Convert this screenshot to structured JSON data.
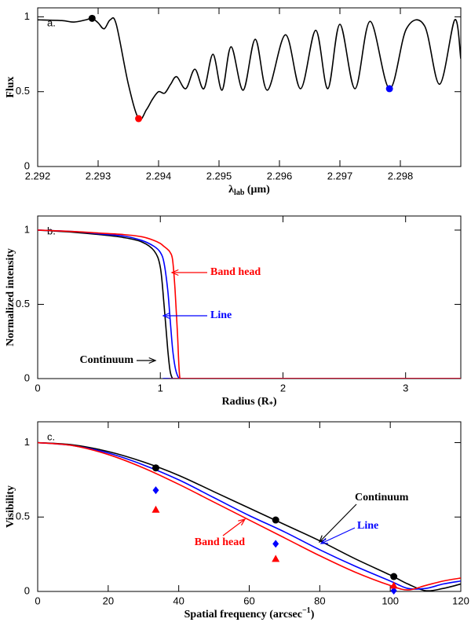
{
  "chart_data": [
    {
      "type": "line",
      "label": "a.",
      "ylabel": "Flux",
      "xlabel": {
        "symbol": "λ",
        "sub": "lab",
        "after": " (μm)"
      },
      "xlim": [
        2.292,
        2.299
      ],
      "xticks": [
        2.292,
        2.293,
        2.294,
        2.295,
        2.296,
        2.297,
        2.298
      ],
      "ylim": [
        0,
        1.06
      ],
      "yticks": [
        0,
        0.5,
        1
      ],
      "x": [
        2.292,
        2.2924,
        2.2926,
        2.2928,
        2.2929,
        2.293,
        2.2931,
        2.2932,
        2.2933,
        2.2935,
        2.29367,
        2.2938,
        2.2939,
        2.294,
        2.2941,
        2.2942,
        2.2943,
        2.29445,
        2.2946,
        2.29475,
        2.2949,
        2.29505,
        2.2952,
        2.2954,
        2.2956,
        2.2958,
        2.2961,
        2.29635,
        2.2966,
        2.2968,
        2.297,
        2.29725,
        2.2975,
        2.29782,
        2.2981,
        2.2984,
        2.29865,
        2.2989,
        2.299
      ],
      "series": [
        {
          "color": "#000000",
          "values": [
            0.98,
            0.975,
            0.965,
            0.98,
            0.99,
            0.96,
            0.92,
            0.98,
            0.95,
            0.55,
            0.32,
            0.38,
            0.45,
            0.5,
            0.49,
            0.55,
            0.6,
            0.52,
            0.65,
            0.52,
            0.75,
            0.51,
            0.8,
            0.51,
            0.85,
            0.51,
            0.88,
            0.52,
            0.91,
            0.52,
            0.95,
            0.52,
            0.97,
            0.52,
            0.92,
            0.94,
            0.55,
            0.98,
            0.72
          ]
        }
      ],
      "points": [
        {
          "shape": "circle",
          "x": [
            2.2929
          ],
          "values": [
            0.99
          ],
          "color": "#000000"
        },
        {
          "shape": "circle",
          "x": [
            2.29367
          ],
          "values": [
            0.32
          ],
          "color": "#ff0000"
        },
        {
          "shape": "circle",
          "x": [
            2.29782
          ],
          "values": [
            0.52
          ],
          "color": "#0000ff"
        }
      ]
    },
    {
      "type": "line",
      "label": "b.",
      "ylabel": "Normalized intensity",
      "xlabel": {
        "symbol": "Radius (R",
        "sub": "*",
        "after": ")"
      },
      "xlim": [
        0,
        3.45
      ],
      "xticks": [
        0,
        1,
        2,
        3
      ],
      "ylim": [
        0,
        1.095
      ],
      "yticks": [
        0,
        0.5,
        1
      ],
      "x": [
        0,
        0.3,
        0.5,
        0.7,
        0.85,
        0.95,
        1.0,
        1.03,
        1.06,
        1.08,
        1.1,
        1.12,
        1.14,
        1.16,
        1.2,
        3.45
      ],
      "series": [
        {
          "color": "#000000",
          "values": [
            1,
            0.985,
            0.97,
            0.95,
            0.92,
            0.86,
            0.75,
            0.5,
            0.2,
            0.05,
            0,
            0,
            0,
            0,
            0,
            0
          ]
        },
        {
          "color": "#0000ff",
          "values": [
            1,
            0.99,
            0.975,
            0.96,
            0.93,
            0.89,
            0.85,
            0.78,
            0.6,
            0.4,
            0.2,
            0.08,
            0.02,
            0,
            0,
            0
          ]
        },
        {
          "color": "#ff0000",
          "values": [
            1,
            0.99,
            0.98,
            0.97,
            0.955,
            0.93,
            0.91,
            0.89,
            0.87,
            0.85,
            0.8,
            0.6,
            0.3,
            0,
            0,
            0
          ]
        }
      ],
      "annotations": [
        {
          "text": "Band head",
          "color": "#ff0000"
        },
        {
          "text": "Line",
          "color": "#0000ff"
        },
        {
          "text": "Continuum",
          "color": "#000000"
        }
      ]
    },
    {
      "type": "line",
      "label": "c.",
      "ylabel": "Visibility",
      "xlabel": {
        "symbol": "Spatial frequency (arcsec",
        "sup": "−1",
        "after": ")"
      },
      "xlim": [
        0,
        120
      ],
      "xticks": [
        0,
        20,
        40,
        60,
        80,
        100,
        120
      ],
      "ylim": [
        0,
        1.14
      ],
      "yticks": [
        0,
        0.5,
        1
      ],
      "x": [
        0,
        10,
        20,
        30,
        40,
        50,
        60,
        70,
        80,
        90,
        100,
        105,
        110,
        115,
        120
      ],
      "series": [
        {
          "color": "#000000",
          "values": [
            1,
            0.985,
            0.94,
            0.87,
            0.78,
            0.67,
            0.56,
            0.45,
            0.34,
            0.22,
            0.11,
            0.05,
            0.005,
            0.02,
            0.05
          ]
        },
        {
          "color": "#0000ff",
          "values": [
            1,
            0.98,
            0.93,
            0.85,
            0.75,
            0.63,
            0.51,
            0.4,
            0.28,
            0.17,
            0.07,
            0.02,
            0.02,
            0.05,
            0.07
          ]
        },
        {
          "color": "#ff0000",
          "values": [
            1,
            0.98,
            0.92,
            0.83,
            0.72,
            0.6,
            0.48,
            0.36,
            0.24,
            0.13,
            0.04,
            0.01,
            0.04,
            0.07,
            0.09
          ]
        }
      ],
      "points": [
        {
          "shape": "circle",
          "x": [
            33.5,
            67.5,
            101
          ],
          "values": [
            0.83,
            0.48,
            0.1
          ],
          "color": "#000000"
        },
        {
          "shape": "diamond",
          "x": [
            33.5,
            67.5,
            101
          ],
          "values": [
            0.68,
            0.32,
            0.005
          ],
          "color": "#0000ff"
        },
        {
          "shape": "triangle",
          "x": [
            33.5,
            67.5,
            101
          ],
          "values": [
            0.55,
            0.22,
            0.04
          ],
          "color": "#ff0000"
        }
      ],
      "annotations": [
        {
          "text": "Continuum",
          "color": "#000000"
        },
        {
          "text": "Line",
          "color": "#0000ff"
        },
        {
          "text": "Band head",
          "color": "#ff0000"
        }
      ]
    }
  ]
}
